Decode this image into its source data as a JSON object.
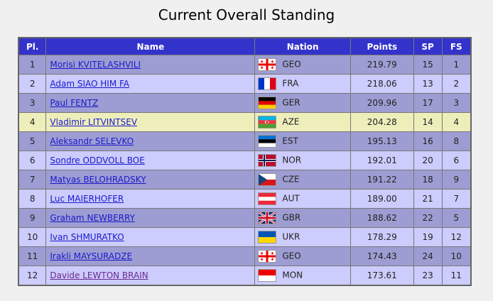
{
  "title": "Current Overall Standing",
  "table": {
    "headers": [
      "Pl.",
      "Name",
      "Nation",
      "Points",
      "SP",
      "FS"
    ],
    "rows": [
      [
        1,
        "Morisi KVITELASHVILI",
        "GEO",
        "219.79",
        15,
        1
      ],
      [
        2,
        "Adam SIAO HIM FA",
        "FRA",
        "218.06",
        13,
        2
      ],
      [
        3,
        "Paul FENTZ",
        "GER",
        "209.96",
        17,
        3
      ],
      [
        4,
        "Vladimir LITVINTSEV",
        "AZE",
        "204.28",
        14,
        4
      ],
      [
        5,
        "Aleksandr SELEVKO",
        "EST",
        "195.13",
        16,
        8
      ],
      [
        6,
        "Sondre ODDVOLL BOE",
        "NOR",
        "192.01",
        20,
        6
      ],
      [
        7,
        "Matyas BELOHRADSKY",
        "CZE",
        "191.22",
        18,
        9
      ],
      [
        8,
        "Luc MAIERHOFER",
        "AUT",
        "189.00",
        21,
        7
      ],
      [
        9,
        "Graham NEWBERRY",
        "GBR",
        "188.62",
        22,
        5
      ],
      [
        10,
        "Ivan SHMURATKO",
        "UKR",
        "178.29",
        19,
        12
      ],
      [
        11,
        "Irakli MAYSURADZE",
        "GEO",
        "174.43",
        24,
        10
      ],
      [
        12,
        "Davide LEWTON BRAIN",
        "MON",
        "173.61",
        23,
        11
      ]
    ]
  }
}
